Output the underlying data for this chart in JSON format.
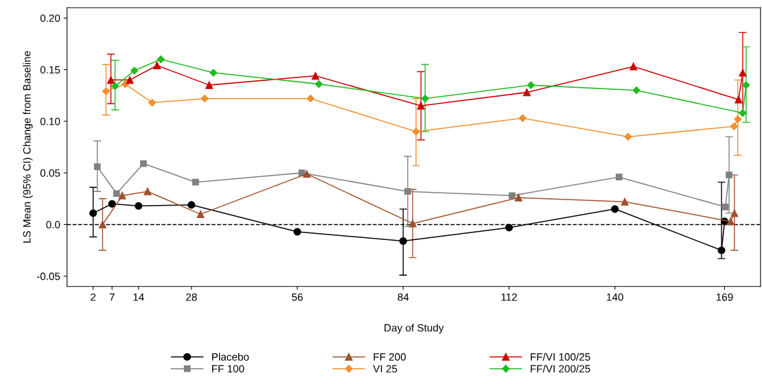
{
  "chart_data": {
    "type": "line",
    "xlabel": "Day of Study",
    "ylabel": "LS Mean (95% CI) Change from Baseline",
    "xlim": [
      -4.9,
      178.5
    ],
    "xticks": [
      2,
      7,
      14,
      28,
      56,
      84,
      112,
      140,
      169
    ],
    "ylim": [
      -0.06,
      0.21
    ],
    "yticks": [
      {
        "value": -0.05,
        "label": "-0.05"
      },
      {
        "value": 0,
        "label": "0.0"
      },
      {
        "value": 0.05,
        "label": "0.05"
      },
      {
        "value": 0.1,
        "label": "0.10"
      },
      {
        "value": 0.15,
        "label": "0.15"
      },
      {
        "value": 0.2,
        "label": "0.20"
      }
    ],
    "grid": false,
    "legend": "bottom",
    "line_style": "solid",
    "ref_lines": [
      {
        "axis": "y",
        "value": 0,
        "color": "#000000",
        "line_style": "dashed"
      }
    ],
    "series": [
      {
        "name": "Placebo",
        "color": "#000000",
        "marker": "circle",
        "x": [
          2,
          7,
          14,
          28,
          56,
          84,
          112,
          140,
          168.2,
          169
        ],
        "values": [
          0.011,
          0.02,
          0.018,
          0.019,
          -0.007,
          -0.016,
          -0.003,
          0.015,
          -0.025,
          0.003
        ],
        "errors": [
          [
            -0.012,
            0.036
          ],
          null,
          null,
          null,
          null,
          [
            -0.049,
            0.015
          ],
          null,
          null,
          [
            -0.033,
            0.041
          ],
          null
        ]
      },
      {
        "name": "FF 100",
        "color": "#808080",
        "marker": "square",
        "x": [
          3.1,
          8.2,
          15.3,
          29.1,
          57.2,
          85.2,
          112.8,
          141.1,
          169.2,
          170.2
        ],
        "values": [
          0.056,
          0.03,
          0.059,
          0.041,
          0.05,
          0.032,
          0.028,
          0.046,
          0.017,
          0.048
        ],
        "errors": [
          [
            0.032,
            0.081
          ],
          null,
          null,
          null,
          null,
          [
            -0.002,
            0.066
          ],
          null,
          null,
          null,
          [
            0.011,
            0.085
          ]
        ]
      },
      {
        "name": "FF 200",
        "color": "#a0522d",
        "marker": "triangle",
        "x": [
          4.5,
          9.7,
          16.4,
          30.4,
          58.5,
          86.5,
          114.5,
          142.6,
          170.6,
          171.6
        ],
        "values": [
          0.0,
          0.028,
          0.032,
          0.01,
          0.049,
          0.001,
          0.026,
          0.022,
          0.003,
          0.011
        ],
        "errors": [
          [
            -0.025,
            0.025
          ],
          null,
          null,
          null,
          null,
          [
            -0.032,
            0.034
          ],
          null,
          null,
          null,
          [
            -0.025,
            0.048
          ]
        ]
      },
      {
        "name": "VI 25",
        "color": "#f0902a",
        "marker": "diamond",
        "x": [
          5.4,
          10.5,
          17.6,
          31.5,
          59.5,
          87.4,
          115.6,
          143.5,
          171.5,
          172.5
        ],
        "values": [
          0.129,
          0.136,
          0.118,
          0.122,
          0.122,
          0.09,
          0.103,
          0.085,
          0.095,
          0.102
        ],
        "errors": [
          [
            0.106,
            0.155
          ],
          null,
          null,
          null,
          null,
          [
            0.057,
            0.122
          ],
          null,
          null,
          null,
          [
            0.067,
            0.14
          ]
        ]
      },
      {
        "name": "FF/VI 100/25",
        "color": "#cc0000",
        "marker": "triangle",
        "x": [
          6.7,
          11.7,
          18.9,
          32.7,
          60.8,
          88.7,
          116.7,
          144.9,
          172.7,
          173.8
        ],
        "values": [
          0.14,
          0.14,
          0.154,
          0.135,
          0.144,
          0.115,
          0.128,
          0.153,
          0.121,
          0.147
        ],
        "errors": [
          [
            0.117,
            0.165
          ],
          null,
          null,
          null,
          null,
          [
            0.082,
            0.148
          ],
          null,
          null,
          null,
          [
            0.108,
            0.186
          ]
        ]
      },
      {
        "name": "FF/VI 200/25",
        "color": "#22bb22",
        "marker": "diamond",
        "x": [
          7.8,
          12.9,
          19.9,
          33.8,
          61.7,
          89.8,
          117.8,
          145.7,
          173.8,
          174.7
        ],
        "values": [
          0.134,
          0.149,
          0.16,
          0.147,
          0.136,
          0.122,
          0.135,
          0.13,
          0.108,
          0.135
        ],
        "errors": [
          [
            0.111,
            0.159
          ],
          null,
          null,
          null,
          null,
          [
            0.09,
            0.155
          ],
          null,
          null,
          null,
          [
            0.099,
            0.172
          ]
        ]
      }
    ]
  }
}
